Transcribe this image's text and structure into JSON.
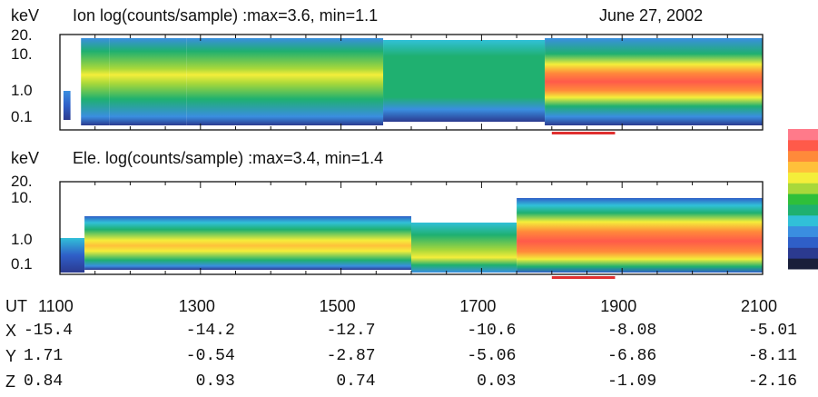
{
  "chart_data": {
    "type": "heatmap",
    "date": "June 27,  2002",
    "panels": [
      {
        "id": "ion",
        "ylabel": "keV",
        "title": "Ion  log(counts/sample) :max=3.6, min=1.1",
        "y_ticks": [
          "20.",
          "10.",
          "1.0",
          "0.1"
        ],
        "log_max": 3.6,
        "log_min": 1.1,
        "segments": [
          {
            "start": 1100,
            "end": 1105,
            "level": "gap"
          },
          {
            "start": 1105,
            "end": 1115,
            "level": "low-blue"
          },
          {
            "start": 1115,
            "end": 1130,
            "level": "gap"
          },
          {
            "start": 1130,
            "end": 1170,
            "level": "blue-green-yellow"
          },
          {
            "start": 1170,
            "end": 1280,
            "level": "green-yellow-orange"
          },
          {
            "start": 1280,
            "end": 1560,
            "level": "green-orange-spots"
          },
          {
            "start": 1560,
            "end": 1790,
            "level": "green"
          },
          {
            "start": 1790,
            "end": 2100,
            "level": "yellow-orange-red"
          }
        ],
        "marker_interval": [
          1800,
          1890
        ]
      },
      {
        "id": "electron",
        "ylabel": "keV",
        "title": "Ele. log(counts/sample) :max=3.4, min=1.4",
        "y_ticks": [
          "20.",
          "10.",
          "1.0",
          "0.1"
        ],
        "log_max": 3.4,
        "log_min": 1.4,
        "segments": [
          {
            "start": 1100,
            "end": 1135,
            "level": "low-blue"
          },
          {
            "start": 1135,
            "end": 1600,
            "level": "green-yellow-orange"
          },
          {
            "start": 1600,
            "end": 1750,
            "level": "green-yellow"
          },
          {
            "start": 1750,
            "end": 2100,
            "level": "yellow-orange-red"
          }
        ],
        "marker_interval": [
          1800,
          1890
        ]
      }
    ],
    "colorbar": [
      "#1a1f3a",
      "#2b3a8f",
      "#2f5fc8",
      "#3a8ee0",
      "#31c0d8",
      "#1fb070",
      "#2fbf3a",
      "#a8d83a",
      "#f4ee3a",
      "#ffc03a",
      "#ff8a3a",
      "#ff5a4a",
      "#ff7a8a"
    ],
    "time_axis": {
      "label": "UT",
      "ticks": [
        "1100",
        "1300",
        "1500",
        "1700",
        "1900",
        "2100"
      ],
      "values": [
        1100,
        1300,
        1500,
        1700,
        1900,
        2100
      ],
      "minor_step": 50
    },
    "ephemeris": [
      {
        "label": "X",
        "values": [
          "-15.4",
          "-14.2",
          "-12.7",
          "-10.6",
          "-8.08",
          "-5.01"
        ]
      },
      {
        "label": "Y",
        "values": [
          "1.71",
          "-0.54",
          "-2.87",
          "-5.06",
          "-6.86",
          "-8.11"
        ]
      },
      {
        "label": "Z",
        "values": [
          "0.84",
          "0.93",
          "0.74",
          "0.03",
          "-1.09",
          "-2.16"
        ]
      }
    ],
    "marker_color": "#e03030"
  }
}
